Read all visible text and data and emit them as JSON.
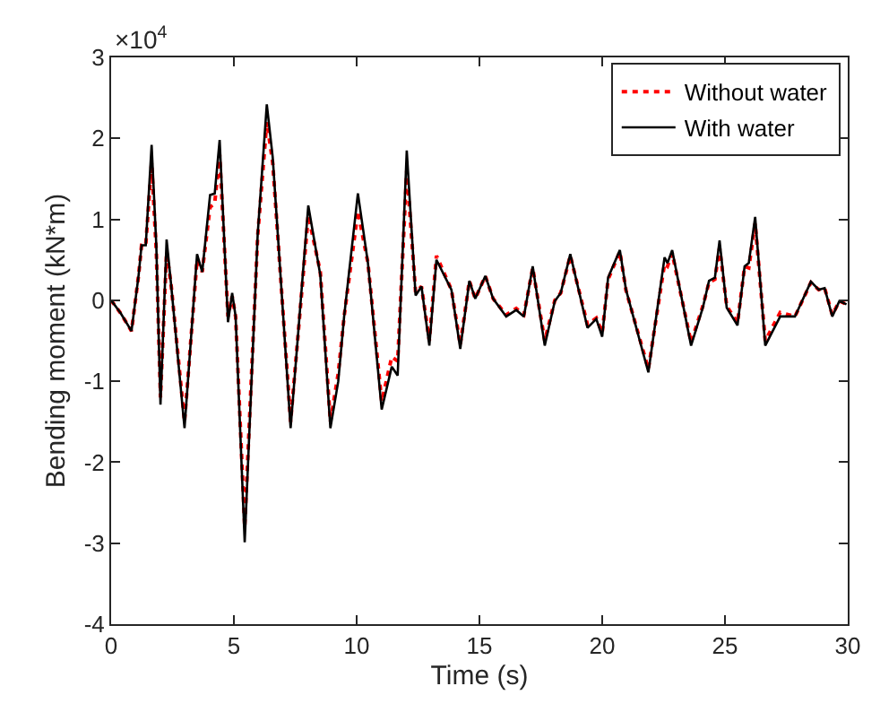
{
  "chart_data": {
    "type": "line",
    "xlabel": "Time (s)",
    "ylabel": "Bending moment (kN*m)",
    "annotations": [
      "×10$^{4}$"
    ],
    "x": [
      0,
      0.39,
      0.83,
      1.12,
      1.24,
      1.41,
      1.65,
      1.84,
      2.01,
      2.26,
      2.45,
      2.99,
      3.5,
      3.71,
      4.03,
      4.22,
      4.42,
      4.76,
      4.93,
      5.07,
      5.44,
      5.97,
      6.34,
      6.58,
      7.31,
      8.03,
      8.52,
      8.93,
      9.25,
      9.49,
      10.05,
      10.46,
      11.02,
      11.43,
      11.67,
      12.04,
      12.4,
      12.64,
      12.96,
      13.25,
      13.86,
      14.22,
      14.59,
      14.83,
      15.24,
      15.56,
      16.09,
      16.5,
      16.81,
      17.17,
      17.66,
      18.07,
      18.31,
      18.7,
      19.4,
      19.76,
      20.0,
      20.24,
      20.72,
      20.97,
      21.88,
      22.54,
      22.66,
      22.85,
      23.62,
      24.1,
      24.35,
      24.59,
      24.78,
      25.07,
      25.51,
      25.8,
      25.97,
      26.23,
      26.64,
      27.25,
      27.85,
      28.5,
      28.82,
      29.06,
      29.37,
      29.66,
      29.95
    ],
    "series": [
      {
        "name": "Without water",
        "color": "#ff0000",
        "line_style": "dotted",
        "values": [
          0,
          -0.16,
          -0.38,
          0.31,
          0.68,
          0.68,
          1.7,
          0.6,
          -1.2,
          0.6,
          0.17,
          -1.5,
          0.5,
          0.35,
          1.15,
          1.2,
          1.8,
          -0.2,
          0.05,
          -0.2,
          -2.8,
          0.8,
          2.2,
          1.7,
          -1.5,
          1.05,
          0.35,
          -1.5,
          -0.9,
          -0.2,
          1.1,
          0.46,
          -1.25,
          -0.7,
          -0.75,
          1.6,
          0.1,
          0.17,
          -0.5,
          0.55,
          0.13,
          -0.55,
          0.24,
          0.02,
          0.3,
          0.02,
          -0.18,
          -0.1,
          -0.18,
          0.4,
          -0.5,
          0.0,
          0.09,
          0.55,
          -0.3,
          -0.22,
          -0.4,
          0.26,
          0.6,
          0.12,
          -0.85,
          0.45,
          0.42,
          0.58,
          -0.52,
          -0.07,
          0.22,
          0.26,
          0.65,
          -0.07,
          -0.28,
          0.42,
          0.4,
          0.95,
          -0.5,
          -0.15,
          -0.2,
          0.22,
          0.13,
          0.15,
          -0.18,
          -0.01,
          -0.05
        ]
      },
      {
        "name": "With water",
        "color": "#000000",
        "line_style": "solid",
        "values": [
          0,
          -0.16,
          -0.38,
          0.31,
          0.68,
          0.68,
          1.92,
          0.68,
          -1.29,
          0.75,
          0.17,
          -1.58,
          0.57,
          0.35,
          1.3,
          1.32,
          1.98,
          -0.27,
          0.09,
          -0.2,
          -2.99,
          0.82,
          2.42,
          1.77,
          -1.58,
          1.17,
          0.31,
          -1.58,
          -1.0,
          -0.2,
          1.32,
          0.46,
          -1.35,
          -0.82,
          -0.93,
          1.85,
          0.06,
          0.17,
          -0.56,
          0.5,
          0.13,
          -0.6,
          0.24,
          0.02,
          0.3,
          0.02,
          -0.2,
          -0.12,
          -0.2,
          0.42,
          -0.56,
          -0.01,
          0.09,
          0.57,
          -0.34,
          -0.23,
          -0.45,
          0.28,
          0.62,
          0.13,
          -0.89,
          0.53,
          0.46,
          0.62,
          -0.56,
          -0.09,
          0.24,
          0.28,
          0.74,
          -0.09,
          -0.31,
          0.42,
          0.46,
          1.03,
          -0.56,
          -0.2,
          -0.2,
          0.23,
          0.13,
          0.15,
          -0.2,
          -0.01,
          -0.05
        ]
      }
    ],
    "xlim": [
      0,
      30
    ],
    "xticks": [
      0,
      5,
      10,
      15,
      20,
      25,
      30
    ],
    "ylim": [
      -4,
      3
    ],
    "yticks": [
      -4,
      -3,
      -2,
      -1,
      0,
      1,
      2,
      3
    ],
    "grid": false,
    "legend": "top right",
    "marker": "none"
  }
}
